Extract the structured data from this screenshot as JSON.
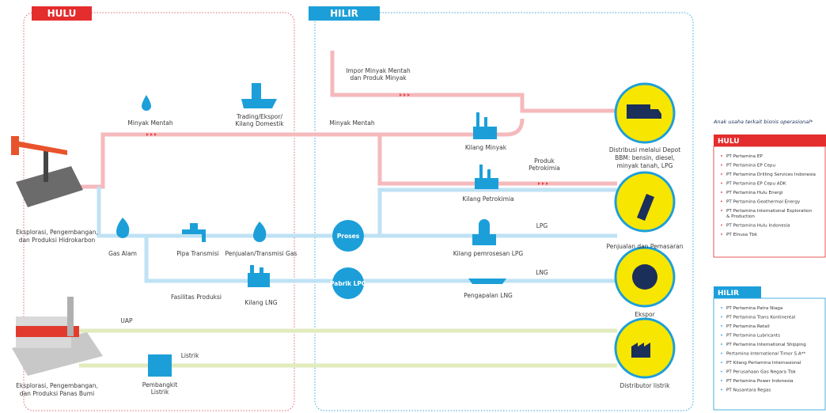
{
  "sections": {
    "hulu": "HULU",
    "hilir": "HILIR"
  },
  "labels": {
    "crude_left": "Minyak Mentah",
    "trading": [
      "Trading/Ekspor/",
      "Kilang Domestik"
    ],
    "import": [
      "Impor Minyak Mentah",
      "dan Produk Minyak"
    ],
    "crude_mid": "Minyak Mentah",
    "oil_refinery": "Kilang Minyak",
    "petrochem_product": [
      "Produk",
      "Petrokimia"
    ],
    "petrochem_refinery": "Kilang Petrokimia",
    "depot": [
      "Distribusi melalui Depot",
      "BBM: bensin, diesel,",
      "minyak tanah, LPG"
    ],
    "hydrocarbon": [
      "Eksplorasi, Pengembangan,",
      "dan Produksi Hidrokarbon"
    ],
    "natural_gas": "Gas Alam",
    "pipeline": "Pipa Transmisi",
    "gas_sales": "Penjualan/Transmisi Gas",
    "process": "Proses",
    "lpg": "LPG",
    "lpg_processing": "Kilang pemrosesan LPG",
    "sales": "Penjualan dan Pemasaran",
    "production": "Fasilitas Produksi",
    "lng_refinery": "Kilang LNG",
    "lpg_factory": "Pabrik LPG",
    "lng_shipping": "Pengapalan LNG",
    "lng": "LNG",
    "export": "Ekspor",
    "steam": "UAP",
    "electricity": "Listrik",
    "power_plant": [
      "Pembangkit",
      "Listrik"
    ],
    "power_distributor": "Distributor listrik",
    "geothermal": [
      "Eksplorasi, Pengembangan,",
      "dan Produksi Panas Bumi"
    ]
  },
  "subsidiaries": {
    "title": "Anak usaha terkait bisnis operasional*",
    "hulu": {
      "title": "HULU",
      "items": [
        "PT Pertamina EP",
        "PT Pertamina EP Cepu",
        "PT Pertamina Drilling Services Indonesia",
        "PT Pertamina EP Cepu ADK",
        "PT Pertamina Hulu Energi",
        "PT Pertamina Geothermal Energy",
        [
          "PT Pertamina International Exploration",
          "& Production"
        ],
        "PT Pertamina Hulu Indonesia",
        "PT Elnusa Tbk"
      ]
    },
    "hilir": {
      "title": "HILIR",
      "items": [
        "PT Pertamina Patra Niaga",
        "PT Pertamina Trans Kontinental",
        "PT Pertamina Retail",
        "PT Pertamina Lubricants",
        "PT Pertamina International Shipping",
        "Pertamina International Timor S.A**",
        "PT Kilang Pertamina Internasional",
        "PT Perusahaan Gas Negara Tbk",
        "PT Pertamina Power Indonesia",
        "PT Nusantara Regas"
      ]
    }
  }
}
